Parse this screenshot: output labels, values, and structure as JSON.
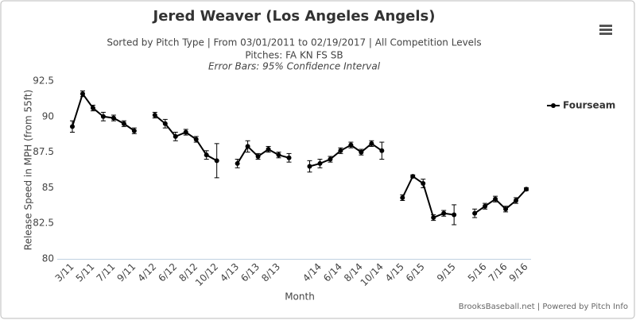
{
  "chart_data": {
    "type": "line",
    "title": "Jered Weaver (Los Angeles Angels)",
    "subtitle": [
      "Sorted by Pitch Type | From 03/01/2011 to 02/19/2017 | All Competition Levels",
      "Pitches: FA KN FS SB",
      "Error Bars: 95% Confidence Interval"
    ],
    "x_label": "Month",
    "y_label": "Release Speed in MPH (from 55ft)",
    "credits": "BrooksBaseball.net | Powered by Pitch Info",
    "categories": [
      "3/11",
      null,
      "5/11",
      null,
      "7/11",
      null,
      "9/11",
      null,
      "4/12",
      null,
      "6/12",
      null,
      "8/12",
      null,
      "10/12",
      null,
      "4/13",
      null,
      "6/13",
      null,
      "8/13",
      null,
      null,
      null,
      "4/14",
      null,
      "6/14",
      null,
      "8/14",
      null,
      "10/14",
      null,
      "4/15",
      null,
      "6/15",
      null,
      null,
      "9/15",
      null,
      null,
      "5/16",
      null,
      "7/16",
      null,
      "9/16"
    ],
    "series": [
      {
        "name": "Fourseam",
        "color": "#000000",
        "values": [
          89.3,
          91.6,
          90.6,
          90.0,
          89.9,
          89.5,
          89.0,
          null,
          90.1,
          89.5,
          88.6,
          88.9,
          88.4,
          87.3,
          86.9,
          null,
          86.7,
          87.9,
          87.2,
          87.7,
          87.3,
          87.1,
          null,
          86.5,
          86.7,
          87.0,
          87.6,
          88.0,
          87.5,
          88.1,
          87.6,
          null,
          84.3,
          85.8,
          85.3,
          82.9,
          83.2,
          83.1,
          null,
          83.2,
          83.7,
          84.2,
          83.5,
          84.1,
          84.9
        ],
        "errors": [
          0.4,
          0.2,
          0.2,
          0.3,
          0.2,
          0.2,
          0.2,
          null,
          0.2,
          0.3,
          0.3,
          0.2,
          0.2,
          0.3,
          1.2,
          null,
          0.3,
          0.4,
          0.2,
          0.2,
          0.2,
          0.3,
          null,
          0.4,
          0.3,
          0.2,
          0.2,
          0.2,
          0.2,
          0.2,
          0.6,
          null,
          0.2,
          0.1,
          0.3,
          0.2,
          0.2,
          0.7,
          null,
          0.3,
          0.2,
          0.2,
          0.2,
          0.2,
          0.1
        ]
      }
    ],
    "ylim": [
      80,
      92.5
    ],
    "yticks": [
      80,
      82.5,
      85,
      87.5,
      90,
      92.5
    ],
    "grid": false,
    "legend": "right"
  }
}
